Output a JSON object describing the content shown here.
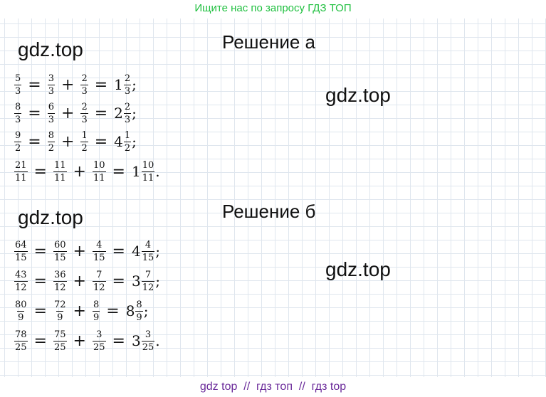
{
  "top_banner": "Ищите нас по запросу ГДЗ ТОП",
  "bottom_banner": "gdz top  //  гдз топ  //  гдз top",
  "watermark": "gdz.top",
  "section_a": {
    "heading": "Решение а",
    "equations": [
      {
        "f1": [
          "5",
          "3"
        ],
        "f2": [
          "3",
          "3"
        ],
        "f3": [
          "2",
          "3"
        ],
        "whole": "1",
        "mix": [
          "2",
          "3"
        ],
        "end": ";"
      },
      {
        "f1": [
          "8",
          "3"
        ],
        "f2": [
          "6",
          "3"
        ],
        "f3": [
          "2",
          "3"
        ],
        "whole": "2",
        "mix": [
          "2",
          "3"
        ],
        "end": ";"
      },
      {
        "f1": [
          "9",
          "2"
        ],
        "f2": [
          "8",
          "2"
        ],
        "f3": [
          "1",
          "2"
        ],
        "whole": "4",
        "mix": [
          "1",
          "2"
        ],
        "end": ";"
      },
      {
        "f1": [
          "21",
          "11"
        ],
        "f2": [
          "11",
          "11"
        ],
        "f3": [
          "10",
          "11"
        ],
        "whole": "1",
        "mix": [
          "10",
          "11"
        ],
        "end": "."
      }
    ]
  },
  "section_b": {
    "heading": "Решение б",
    "equations": [
      {
        "f1": [
          "64",
          "15"
        ],
        "f2": [
          "60",
          "15"
        ],
        "f3": [
          "4",
          "15"
        ],
        "whole": "4",
        "mix": [
          "4",
          "15"
        ],
        "end": ";"
      },
      {
        "f1": [
          "43",
          "12"
        ],
        "f2": [
          "36",
          "12"
        ],
        "f3": [
          "7",
          "12"
        ],
        "whole": "3",
        "mix": [
          "7",
          "12"
        ],
        "end": ";"
      },
      {
        "f1": [
          "80",
          "9"
        ],
        "f2": [
          "72",
          "9"
        ],
        "f3": [
          "8",
          "9"
        ],
        "whole": "8",
        "mix": [
          "8",
          "9"
        ],
        "end": ";"
      },
      {
        "f1": [
          "78",
          "25"
        ],
        "f2": [
          "75",
          "25"
        ],
        "f3": [
          "3",
          "25"
        ],
        "whole": "3",
        "mix": [
          "3",
          "25"
        ],
        "end": "."
      }
    ]
  }
}
